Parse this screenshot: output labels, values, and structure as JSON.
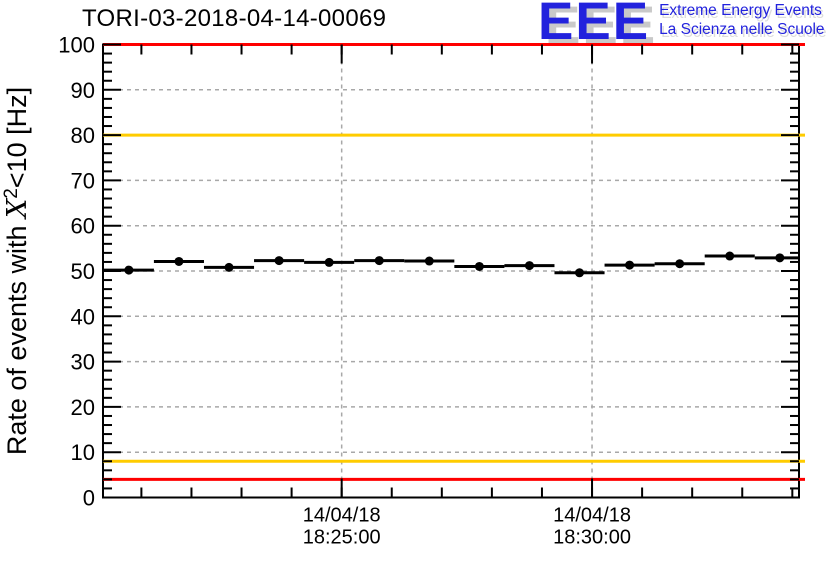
{
  "page": {
    "background": "#ffffff"
  },
  "logo": {
    "acronym": "EEE",
    "tagline_line1": "Extreme Energy Events",
    "tagline_line2": "La Scienza nelle Scuole",
    "text_color": "#2222dd",
    "shadow_color": "#c9c9c9"
  },
  "chart_data": {
    "type": "scatter",
    "title": "TORI-03-2018-04-14-00069",
    "ylabel_prefix": "Rate of events with ",
    "ylabel_symbol": "X",
    "ylabel_superscript": "2",
    "ylabel_suffix": "<10 [Hz]",
    "ylim": [
      0,
      100
    ],
    "y_major_step": 10,
    "y_minor_step": 2,
    "y_tick_labels": [
      "0",
      "10",
      "20",
      "30",
      "40",
      "50",
      "60",
      "70",
      "80",
      "90",
      "100"
    ],
    "grid": true,
    "grid_color": "#a8a8a8",
    "frame_color": "#000000",
    "x_axis": {
      "date_label": "14/04/18",
      "start_time": "18:20:14",
      "end_time": "18:34:08",
      "minor_tick_every_s": 60,
      "major_ticks": [
        {
          "time": "18:25:00",
          "label_line1": "14/04/18",
          "label_line2": "18:25:00"
        },
        {
          "time": "18:30:00",
          "label_line1": "14/04/18",
          "label_line2": "18:30:00"
        }
      ]
    },
    "thresholds": [
      {
        "name": "alarm-high",
        "value": 100,
        "color": "#ff0000"
      },
      {
        "name": "warn-high",
        "value": 80,
        "color": "#ffcc00"
      },
      {
        "name": "warn-low",
        "value": 8,
        "color": "#ffcc00"
      },
      {
        "name": "alarm-low",
        "value": 4,
        "color": "#ff0000"
      }
    ],
    "series": {
      "name": "event-rate",
      "marker_color": "#000000",
      "bin_width_s": 60,
      "points": [
        {
          "time": "18:20:45",
          "rate_hz": 50.2
        },
        {
          "time": "18:21:45",
          "rate_hz": 52.1
        },
        {
          "time": "18:22:45",
          "rate_hz": 50.8
        },
        {
          "time": "18:23:45",
          "rate_hz": 52.3
        },
        {
          "time": "18:24:45",
          "rate_hz": 51.9
        },
        {
          "time": "18:25:45",
          "rate_hz": 52.3
        },
        {
          "time": "18:26:45",
          "rate_hz": 52.2
        },
        {
          "time": "18:27:45",
          "rate_hz": 51.0
        },
        {
          "time": "18:28:45",
          "rate_hz": 51.2
        },
        {
          "time": "18:29:45",
          "rate_hz": 49.6
        },
        {
          "time": "18:30:45",
          "rate_hz": 51.3
        },
        {
          "time": "18:31:45",
          "rate_hz": 51.6
        },
        {
          "time": "18:32:45",
          "rate_hz": 53.3
        },
        {
          "time": "18:33:45",
          "rate_hz": 52.9
        }
      ]
    }
  }
}
